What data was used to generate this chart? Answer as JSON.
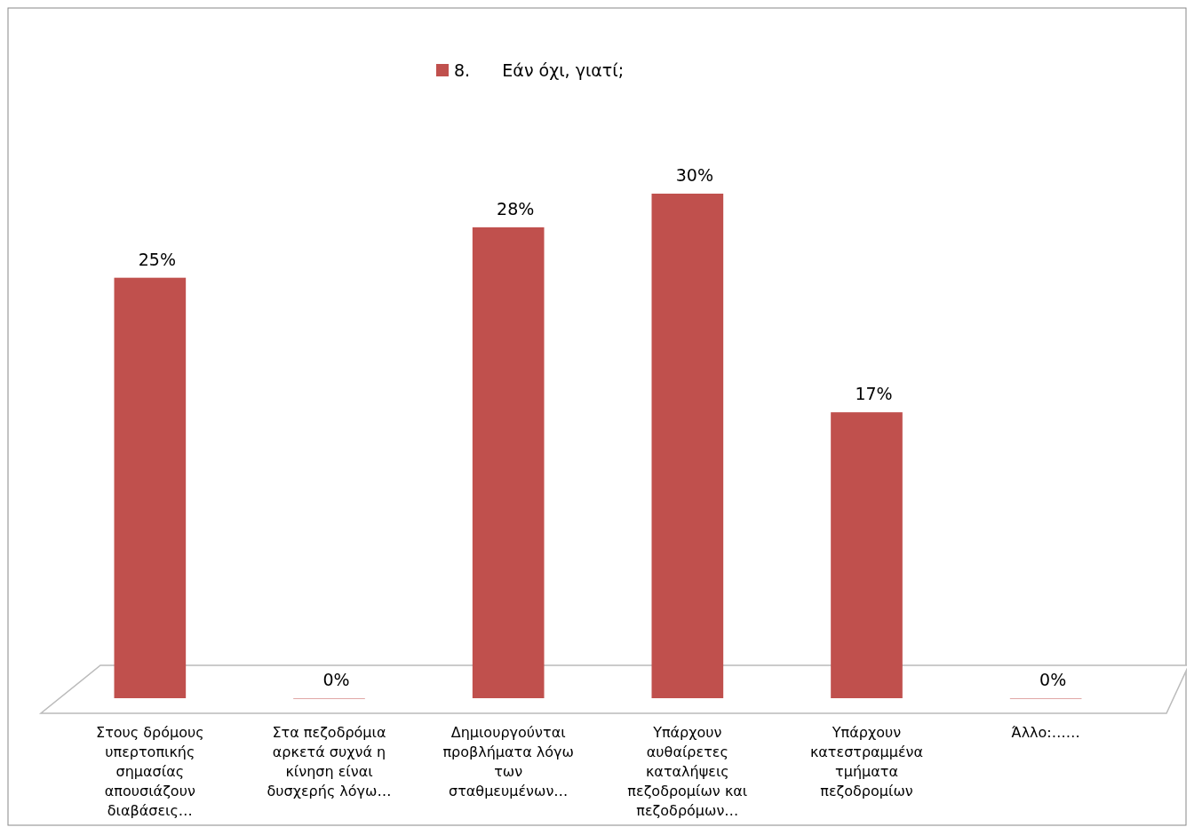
{
  "chart_data": {
    "type": "bar",
    "categories": [
      "Στους δρόμους υπερτοπικής σημασίας απουσιάζουν διαβάσεις…",
      "Στα πεζοδρόμια αρκετά συχνά η κίνηση είναι δυσχερής λόγω…",
      "Δημιουργούνται προβλήματα λόγω των σταθμευμένων…",
      "Υπάρχουν αυθαίρετες καταλήψεις πεζοδρομίων και πεζοδρόμων…",
      "Υπάρχουν κατεστραμμένα τμήματα πεζοδρομίων",
      "Άλλο:……"
    ],
    "series": [
      {
        "name": "8.      Εάν όχι, γιατί;",
        "color": "#c0504d",
        "values": [
          25,
          0,
          28,
          30,
          17,
          0
        ],
        "value_labels": [
          "25%",
          "0%",
          "28%",
          "30%",
          "17%",
          "0%"
        ]
      }
    ],
    "legend": "top"
  }
}
